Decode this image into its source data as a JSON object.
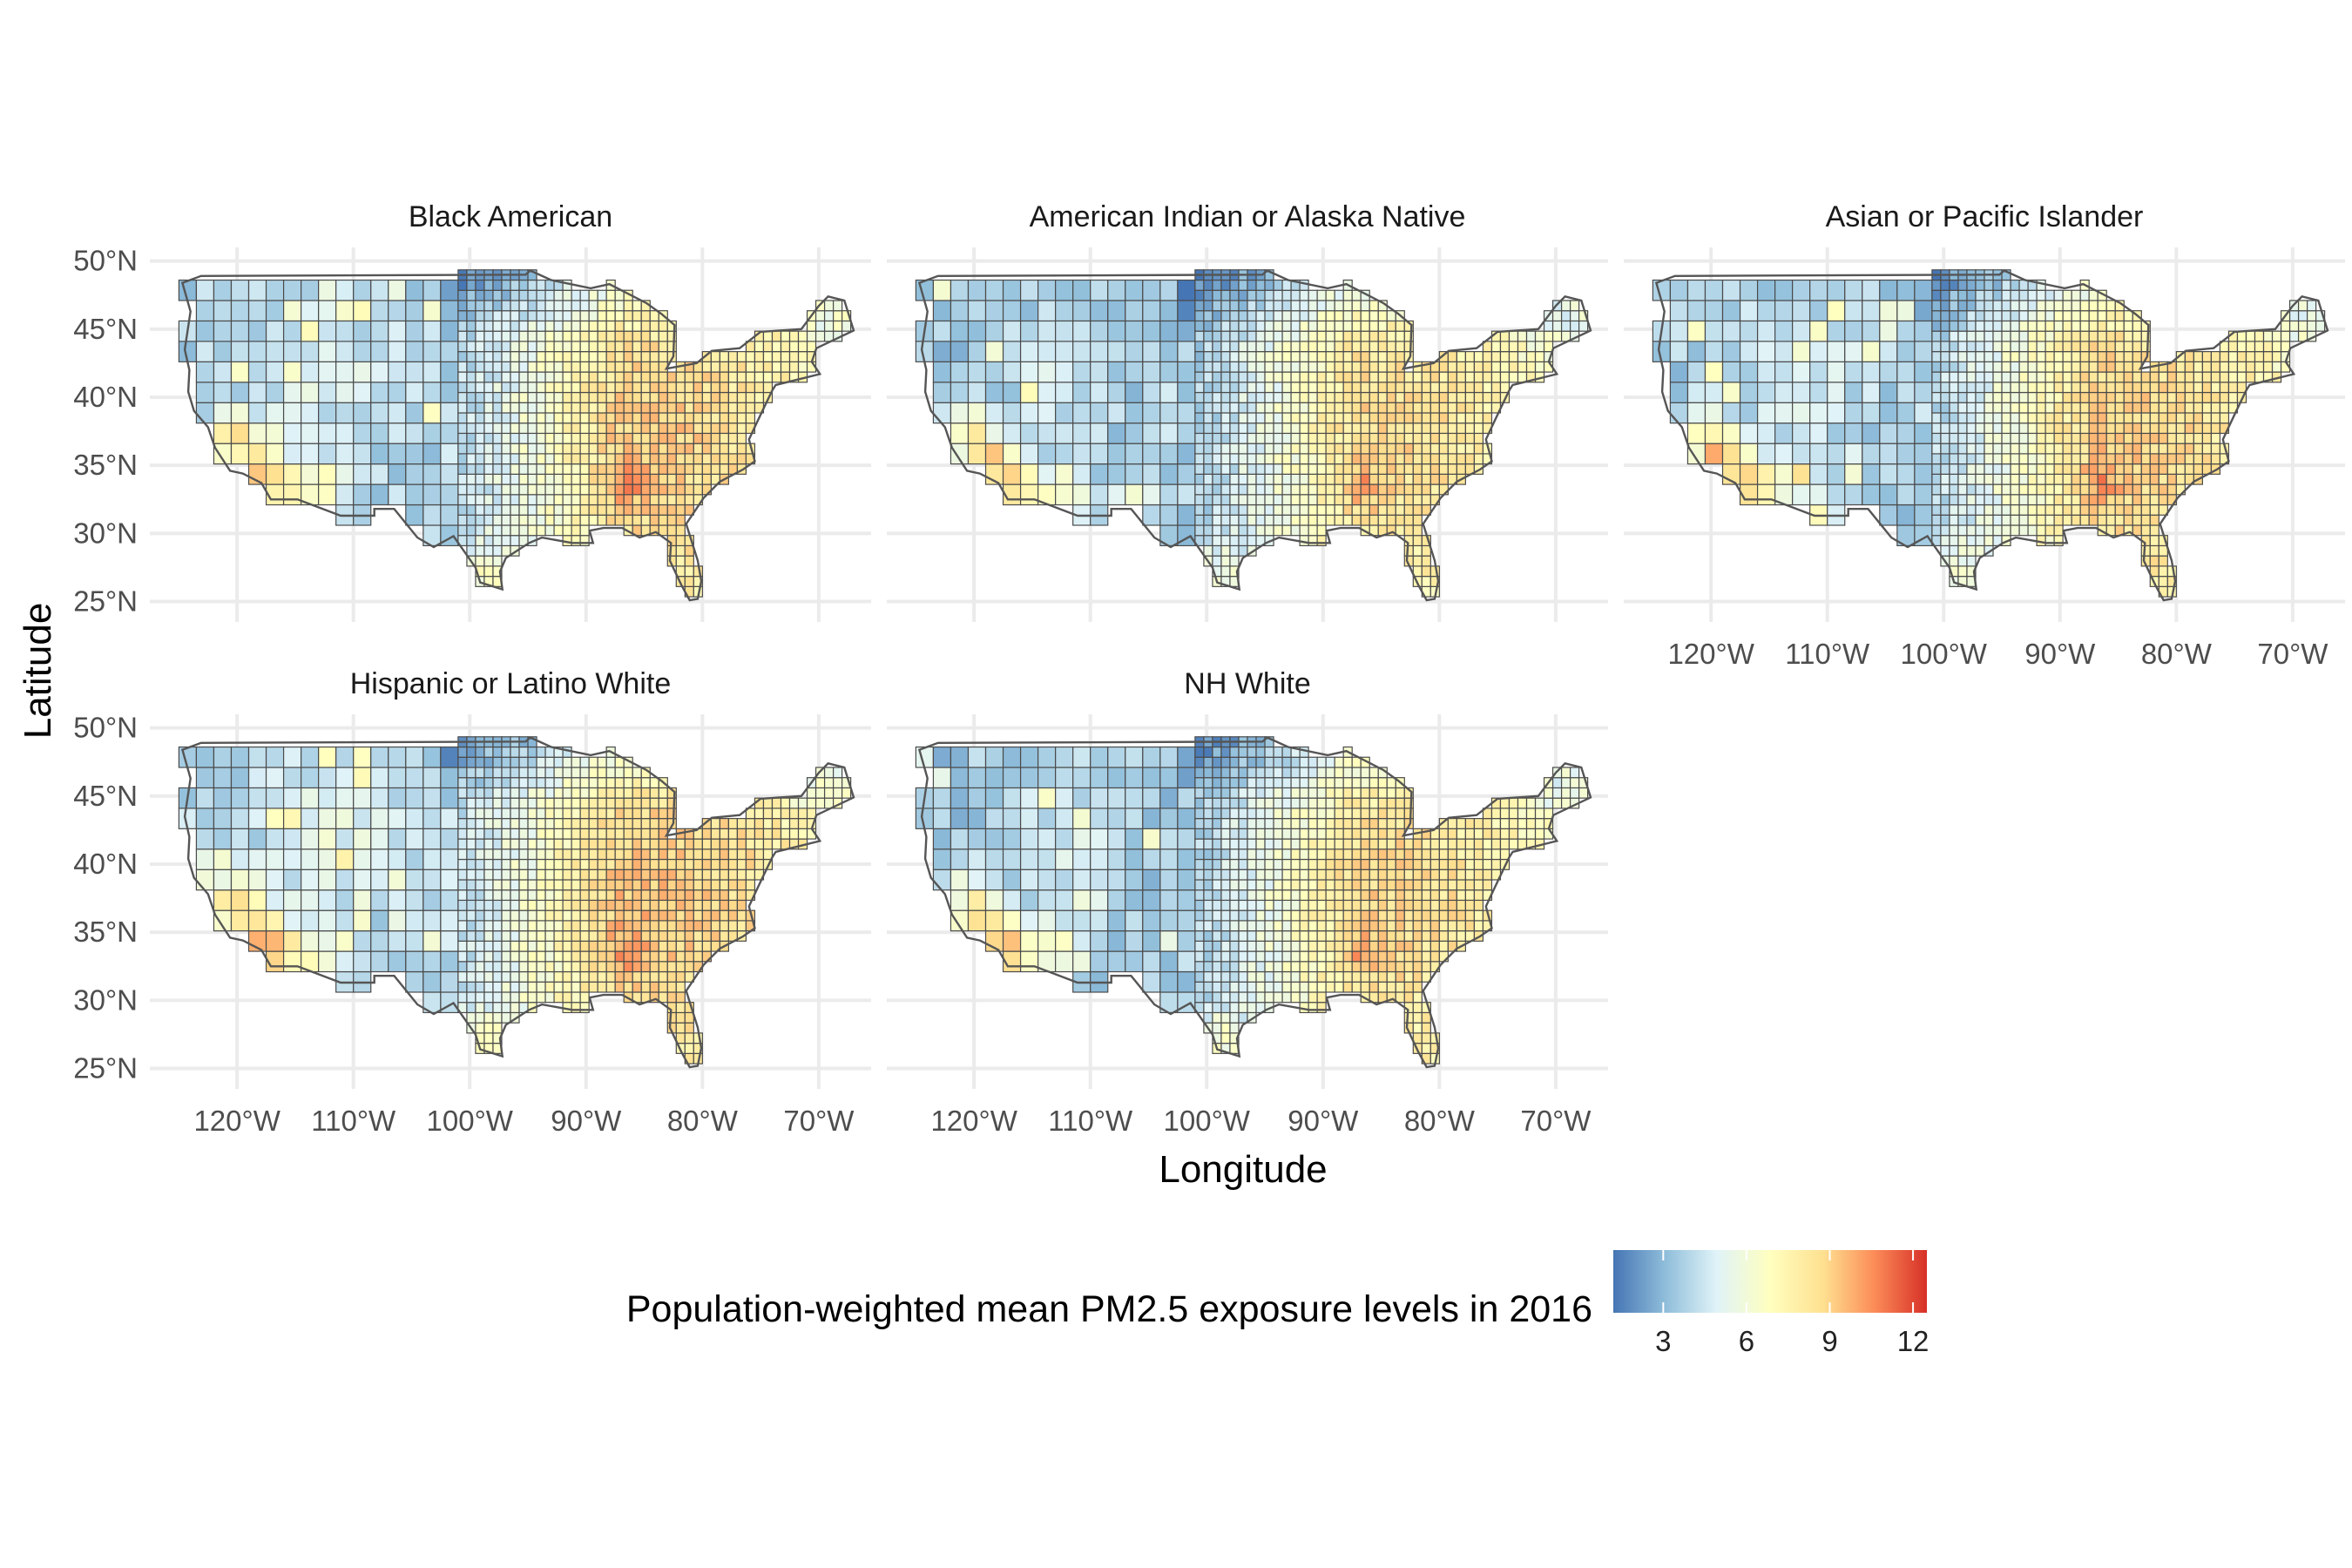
{
  "chart_data": {
    "type": "choropleth map (facet grid)",
    "facets": [
      "Black American",
      "American Indian or Alaska Native",
      "Asian or Pacific Islander",
      "Hispanic or Latino White",
      "NH White"
    ],
    "xlabel": "Longitude",
    "ylabel": "Latitude",
    "x_ticks": [
      "120°W",
      "110°W",
      "100°W",
      "90°W",
      "80°W",
      "70°W"
    ],
    "y_ticks": [
      "50°N",
      "45°N",
      "40°N",
      "35°N",
      "30°N",
      "25°N"
    ],
    "x_tick_values": [
      -120,
      -110,
      -100,
      -90,
      -80,
      -70
    ],
    "y_tick_values": [
      50,
      45,
      40,
      35,
      30,
      25
    ],
    "xlim": [
      -127.5,
      -65.5
    ],
    "ylim": [
      23.5,
      51
    ],
    "grid": true,
    "legend": {
      "title": "Population-weighted mean PM2.5 exposure levels in 2016",
      "ticks": [
        "3",
        "6",
        "9",
        "12"
      ],
      "tick_values": [
        3,
        6,
        9,
        12
      ],
      "range": [
        1.2,
        12.5
      ],
      "placement": "bottom",
      "palette": [
        "#4575b4",
        "#91bfdb",
        "#e0f3f8",
        "#ffffbf",
        "#fee090",
        "#fc8d59",
        "#d73027"
      ]
    }
  }
}
